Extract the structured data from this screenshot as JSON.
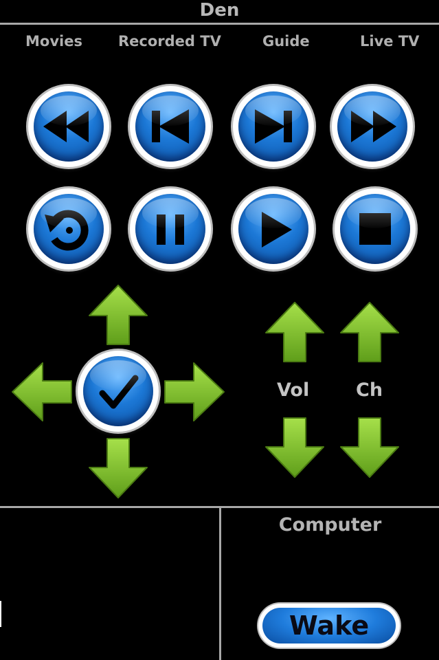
{
  "header": {
    "title": "Den"
  },
  "nav": {
    "movies": "Movies",
    "recorded_tv": "Recorded TV",
    "guide": "Guide",
    "live_tv": "Live TV"
  },
  "transport": {
    "row1": [
      "rewind-icon",
      "skip-back-icon",
      "skip-forward-icon",
      "fast-forward-icon"
    ],
    "row2": [
      "replay-icon",
      "pause-icon",
      "play-icon",
      "stop-icon"
    ]
  },
  "dpad": {
    "center": "checkmark-icon"
  },
  "volume": {
    "label": "Vol"
  },
  "channel": {
    "label": "Ch"
  },
  "computer": {
    "title": "Computer",
    "wake_label": "Wake"
  },
  "colors": {
    "accent_blue": "#1c78d6",
    "arrow_green": "#7fc42a",
    "background": "#000000"
  }
}
